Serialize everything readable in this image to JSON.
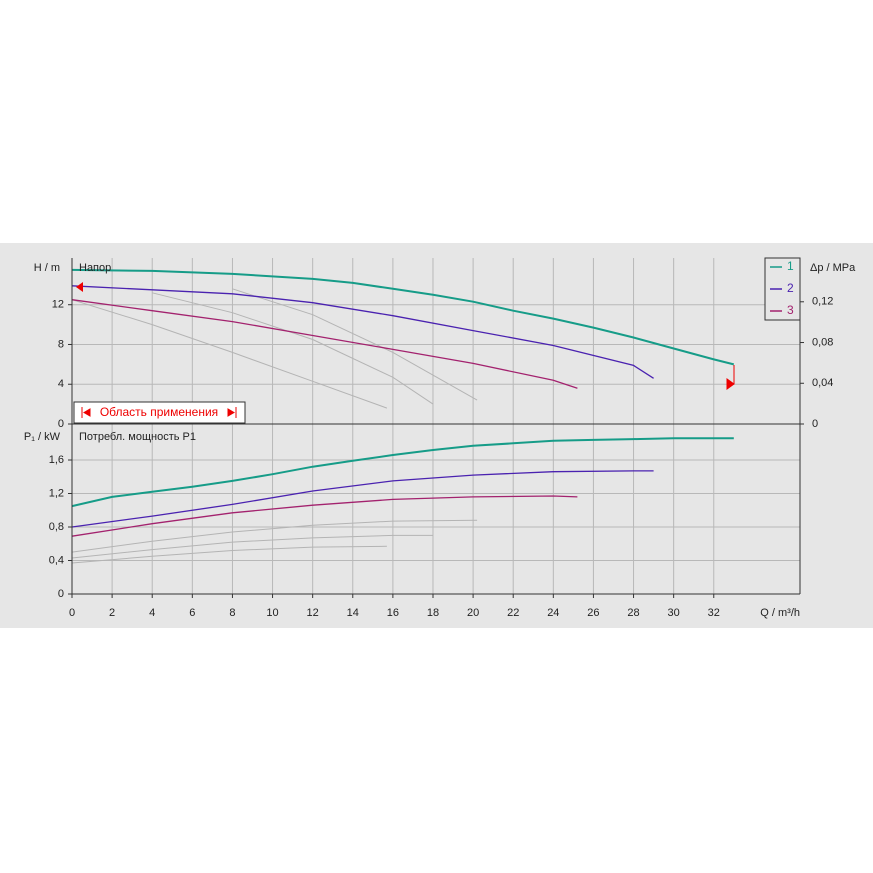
{
  "chart_data": [
    {
      "type": "line",
      "ylabel": "H / m",
      "annotation": "Напор",
      "y2label": "Δp / MPa",
      "range_label": "Область применения",
      "xlim": [
        0,
        36.3
      ],
      "ylim": [
        0,
        16.7
      ],
      "yticks": [
        0,
        4,
        8,
        12
      ],
      "y2lim": [
        0,
        0.163
      ],
      "y2ticks": [
        0,
        {
          "value": 0.04,
          "label": "0,04"
        },
        {
          "value": 0.08,
          "label": "0,08"
        },
        {
          "value": 0.12,
          "label": "0,12"
        }
      ],
      "grid": true,
      "legend": "upper right",
      "series": [
        {
          "name": "1",
          "color": "#169c88",
          "x": [
            0,
            4,
            8,
            12,
            14,
            16,
            18,
            20,
            22,
            24,
            26,
            28,
            30,
            32,
            33
          ],
          "values": [
            15.5,
            15.4,
            15.1,
            14.6,
            14.2,
            13.6,
            13.0,
            12.3,
            11.4,
            10.6,
            9.7,
            8.7,
            7.6,
            6.5,
            6.0
          ]
        },
        {
          "name": "2",
          "color": "#4a22b0",
          "x": [
            0,
            4,
            8,
            12,
            16,
            20,
            24,
            28,
            29
          ],
          "values": [
            13.9,
            13.5,
            13.1,
            12.2,
            10.9,
            9.4,
            7.9,
            5.9,
            4.6
          ]
        },
        {
          "name": "3",
          "color": "#a3226e",
          "x": [
            0,
            4,
            8,
            12,
            16,
            20,
            24,
            25.2
          ],
          "values": [
            12.5,
            11.4,
            10.3,
            8.9,
            7.5,
            6.1,
            4.4,
            3.6
          ]
        },
        {
          "color": "#b4b4b4",
          "x": [
            0,
            4,
            8,
            12,
            15.7
          ],
          "values": [
            12.5,
            10.0,
            7.2,
            4.3,
            1.6
          ]
        },
        {
          "color": "#b4b4b4",
          "x": [
            4,
            8,
            12,
            16,
            18
          ],
          "values": [
            13.2,
            11.2,
            8.5,
            4.7,
            2.0
          ]
        },
        {
          "color": "#b4b4b4",
          "x": [
            8,
            12,
            16,
            20.2
          ],
          "values": [
            13.6,
            11.0,
            7.2,
            2.4
          ]
        }
      ]
    },
    {
      "type": "line",
      "ylabel": "P₁ / kW",
      "annotation": "Потребл. мощность P1",
      "xlabel": "Q / m³/h",
      "xlim": [
        0,
        36.3
      ],
      "xticks": [
        0,
        2,
        4,
        6,
        8,
        10,
        12,
        14,
        16,
        18,
        20,
        22,
        24,
        26,
        28,
        30,
        32
      ],
      "ylim": [
        0,
        2.03
      ],
      "yticks": [
        0,
        {
          "value": 0.4,
          "label": "0,4"
        },
        {
          "value": 0.8,
          "label": "0,8"
        },
        {
          "value": 1.2,
          "label": "1,2"
        },
        {
          "value": 1.6,
          "label": "1,6"
        }
      ],
      "grid": true,
      "series": [
        {
          "color": "#169c88",
          "x": [
            0,
            2,
            4,
            6,
            8,
            10,
            12,
            14,
            16,
            18,
            20,
            22,
            24,
            26,
            28,
            30,
            33
          ],
          "values": [
            1.05,
            1.16,
            1.22,
            1.28,
            1.35,
            1.43,
            1.52,
            1.59,
            1.66,
            1.72,
            1.77,
            1.8,
            1.83,
            1.84,
            1.85,
            1.86,
            1.86
          ]
        },
        {
          "color": "#4a22b0",
          "x": [
            0,
            4,
            8,
            12,
            16,
            20,
            24,
            28,
            29
          ],
          "values": [
            0.8,
            0.93,
            1.07,
            1.23,
            1.35,
            1.42,
            1.46,
            1.47,
            1.47
          ]
        },
        {
          "color": "#a3226e",
          "x": [
            0,
            4,
            8,
            12,
            16,
            20,
            24,
            25.2
          ],
          "values": [
            0.69,
            0.84,
            0.97,
            1.06,
            1.13,
            1.16,
            1.17,
            1.16
          ]
        },
        {
          "color": "#b4b4b4",
          "x": [
            0,
            4,
            8,
            12,
            15.7
          ],
          "values": [
            0.37,
            0.45,
            0.52,
            0.56,
            0.57
          ]
        },
        {
          "color": "#b4b4b4",
          "x": [
            0,
            4,
            8,
            12,
            16,
            18
          ],
          "values": [
            0.43,
            0.53,
            0.62,
            0.67,
            0.7,
            0.7
          ]
        },
        {
          "color": "#b4b4b4",
          "x": [
            0,
            4,
            8,
            12,
            16,
            20.2
          ],
          "values": [
            0.5,
            0.63,
            0.74,
            0.82,
            0.87,
            0.88
          ]
        }
      ]
    }
  ]
}
